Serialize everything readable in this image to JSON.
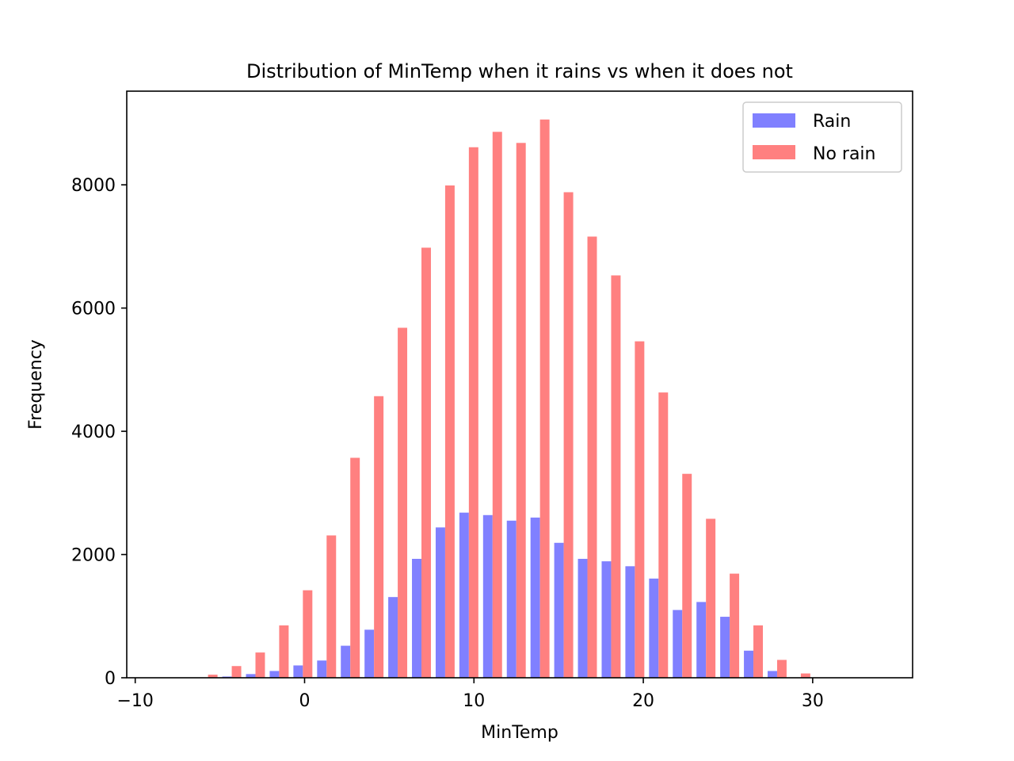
{
  "chart_data": {
    "type": "bar",
    "title": "Distribution of MinTemp when it rains vs when it does not",
    "xlabel": "MinTemp",
    "ylabel": "Frequency",
    "xlim": [
      -10.5,
      35.9
    ],
    "ylim": [
      0,
      9520
    ],
    "xticks": [
      -10,
      0,
      10,
      20,
      30
    ],
    "xtick_labels": [
      "−10",
      "0",
      "10",
      "20",
      "30"
    ],
    "yticks": [
      0,
      2000,
      4000,
      6000,
      8000
    ],
    "ytick_labels": [
      "0",
      "2000",
      "4000",
      "6000",
      "8000"
    ],
    "grid": false,
    "legend_position": "top-right",
    "bin_centers": [
      -8.5,
      -7.1,
      -5.7,
      -4.3,
      -2.9,
      -1.5,
      -0.1,
      1.3,
      2.7,
      4.1,
      5.5,
      6.9,
      8.3,
      9.7,
      11.1,
      12.5,
      13.9,
      15.3,
      16.7,
      18.1,
      19.5,
      20.9,
      22.3,
      23.7,
      25.1,
      26.5,
      27.9,
      29.3,
      30.7,
      32.1,
      33.5
    ],
    "series": [
      {
        "name": "Rain",
        "color": "#8080ff",
        "values": [
          0,
          0,
          0,
          20,
          60,
          110,
          200,
          280,
          520,
          780,
          1310,
          1930,
          2440,
          2680,
          2640,
          2550,
          2600,
          2190,
          1930,
          1890,
          1810,
          1610,
          1100,
          1230,
          990,
          440,
          110,
          0,
          0,
          0,
          0
        ]
      },
      {
        "name": "No rain",
        "color": "#ff8080",
        "values": [
          0,
          0,
          50,
          190,
          410,
          850,
          1420,
          2310,
          3570,
          4570,
          5680,
          6980,
          7990,
          8610,
          8860,
          8680,
          9060,
          7880,
          7160,
          6530,
          5460,
          4630,
          3310,
          2580,
          1690,
          850,
          290,
          70,
          0,
          0,
          0
        ]
      }
    ]
  }
}
